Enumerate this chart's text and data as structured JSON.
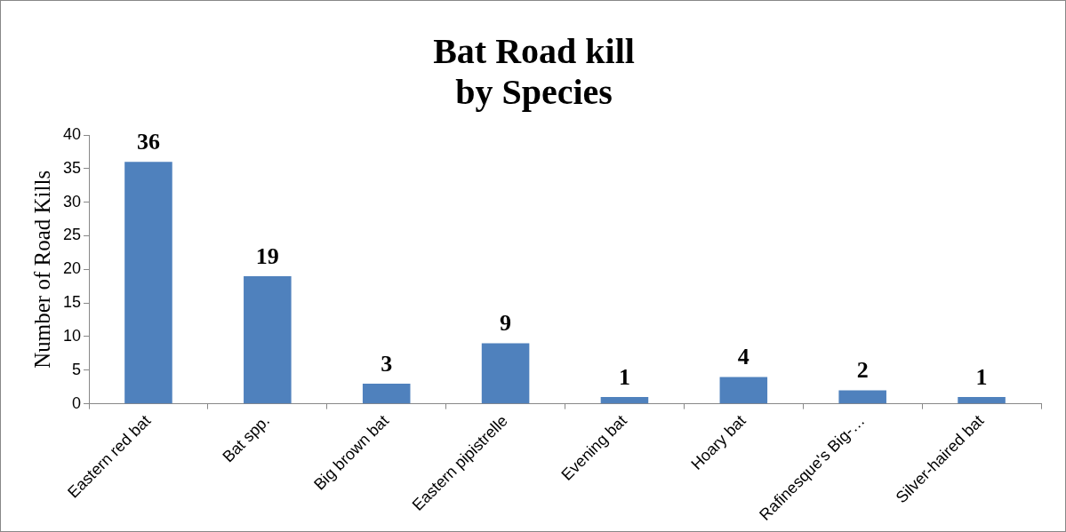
{
  "chart_data": {
    "type": "bar",
    "title": "Bat Road kill\nby Species",
    "ylabel": "Number of Road Kills",
    "categories": [
      "Eastern red bat",
      "Bat spp.",
      "Big brown bat",
      "Eastern pipistrelle",
      "Evening bat",
      "Hoary bat",
      "Rafinesque's Big-…",
      "Silver-haired bat"
    ],
    "values": [
      36,
      19,
      3,
      9,
      1,
      4,
      2,
      1
    ],
    "color": "#4f81bd",
    "ylim": [
      0,
      40
    ],
    "yticks": [
      0,
      5,
      10,
      15,
      20,
      25,
      30,
      35,
      40
    ],
    "grid": false,
    "legend": false,
    "data_labels": true
  }
}
